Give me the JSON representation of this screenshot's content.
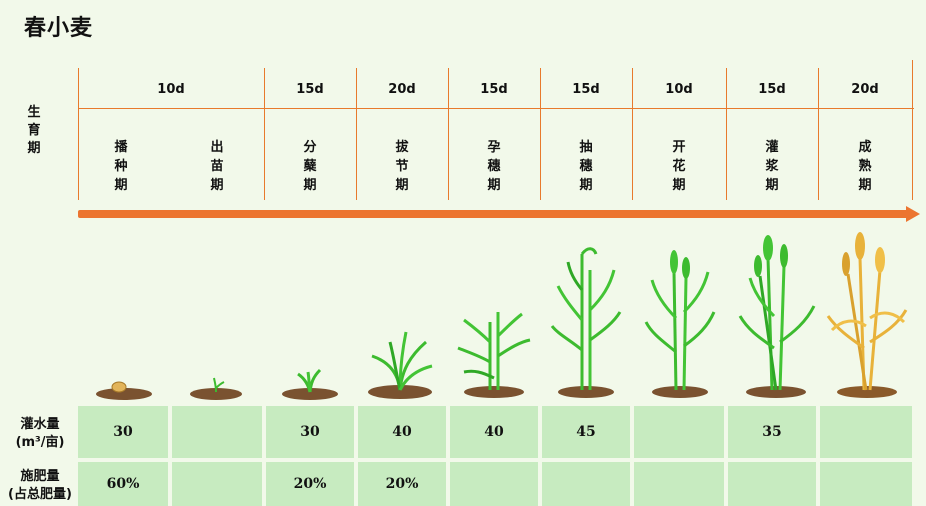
{
  "title": "春小麦",
  "labels": {
    "growth_period": "生\n育\n期",
    "irrigation": "灌水量\n(m³/亩)",
    "fertilizer": "施肥量\n(占总肥量)"
  },
  "durations": [
    "10d",
    "15d",
    "20d",
    "15d",
    "15d",
    "10d",
    "15d",
    "20d"
  ],
  "stages": [
    "播\n种\n期",
    "出\n苗\n期",
    "分\n蘖\n期",
    "拔\n节\n期",
    "孕\n穗\n期",
    "抽\n穗\n期",
    "开\n花\n期",
    "灌\n浆\n期",
    "成\n熟\n期"
  ],
  "irrigation": [
    "30",
    "",
    "30",
    "40",
    "40",
    "45",
    "",
    "35",
    ""
  ],
  "fertilizer": [
    "60%",
    "",
    "20%",
    "20%",
    "",
    "",
    "",
    "",
    ""
  ],
  "colors": {
    "background": "#f2f9ea",
    "arrow": "#ec7530",
    "cell": "#c7ebc0",
    "leaf_green": "#3dbb2f",
    "ripe_gold": "#e8b23a",
    "soil": "#7a5230"
  }
}
